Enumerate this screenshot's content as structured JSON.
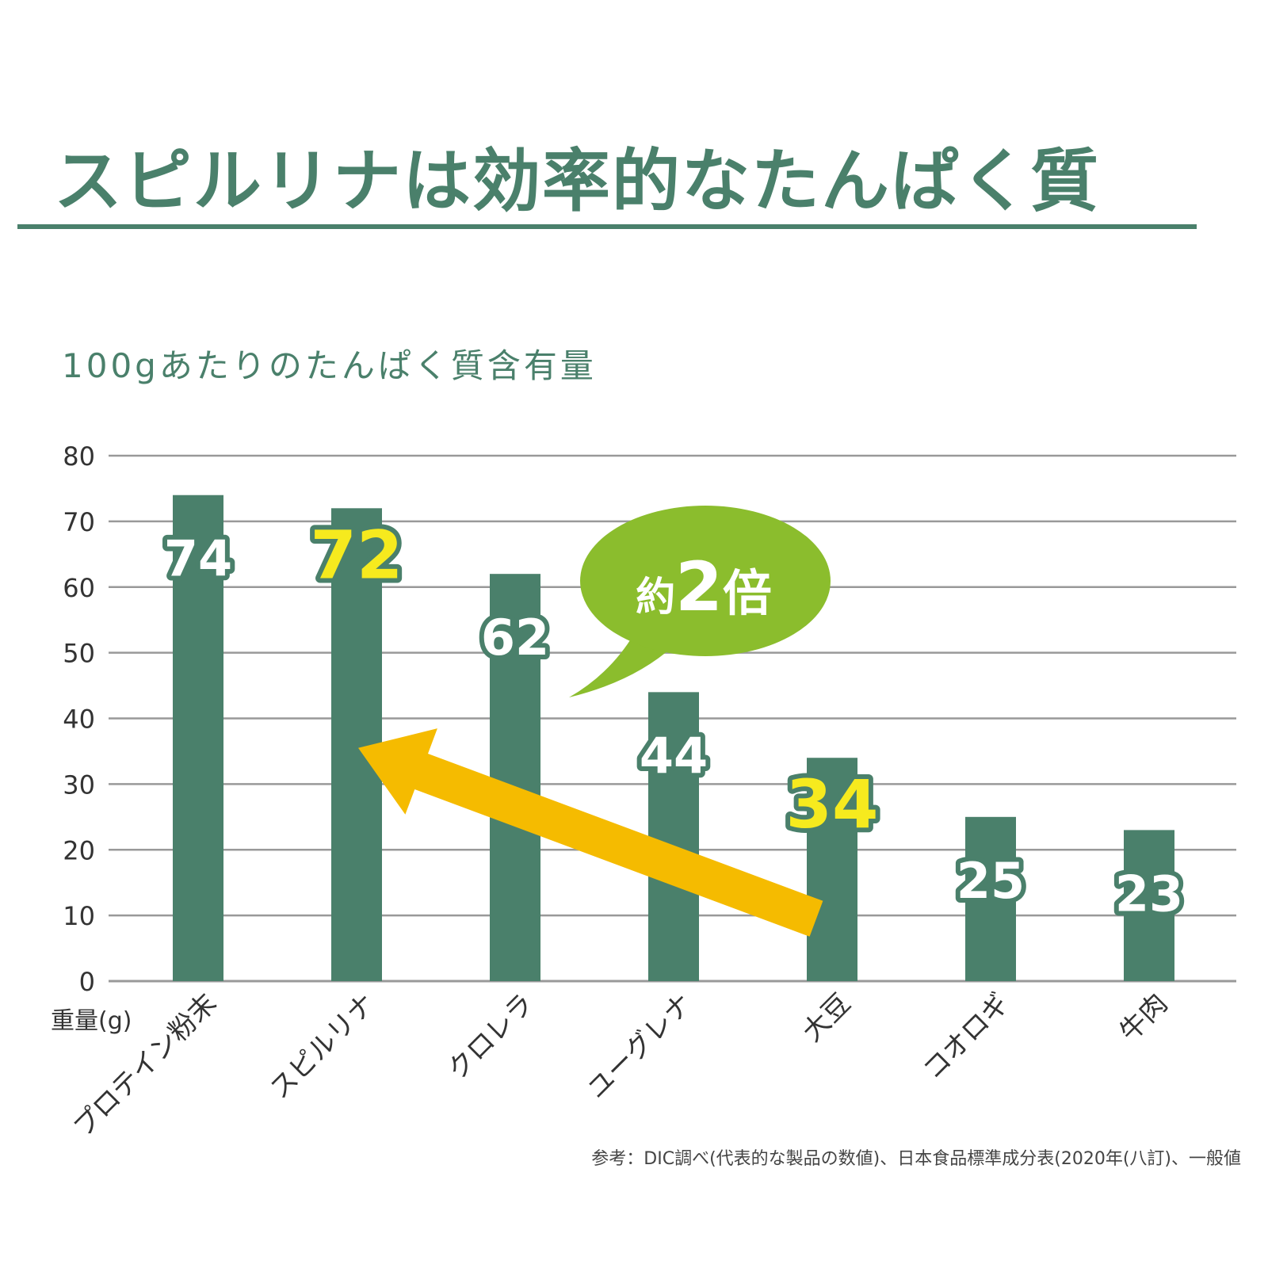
{
  "title": "スピルリナは効率的なたんぱく質",
  "subtitle": "100gあたりのたんぱく質含有量",
  "source": "参考：DIC調べ(代表的な製品の数値)、日本食品標準成分表(2020年(八訂)、一般値",
  "callout": {
    "prefix": "約",
    "number": "2",
    "suffix": "倍"
  },
  "colors": {
    "accent": "#4a806b",
    "bar": "#4a806b",
    "highlight_label": "#f6ea1e",
    "callout_bubble": "#8bbd2d",
    "arrow": "#f5bb00",
    "grid": "#999999"
  },
  "chart_data": {
    "type": "bar",
    "title": "100gあたりのたんぱく質含有量",
    "ylabel": "重量(g)",
    "xlabel": "",
    "ylim": [
      0,
      80
    ],
    "yticks": [
      0,
      10,
      20,
      30,
      40,
      50,
      60,
      70,
      80
    ],
    "grid": true,
    "categories": [
      "プロテイン粉末",
      "スピルリナ",
      "クロレラ",
      "ユーグレナ",
      "大豆",
      "コオロギ",
      "牛肉"
    ],
    "values": [
      74,
      72,
      62,
      44,
      34,
      25,
      23
    ],
    "data_labels": [
      "74",
      "72",
      "62",
      "44",
      "34",
      "25",
      "23"
    ],
    "highlighted": [
      "スピルリナ",
      "大豆"
    ],
    "annotations": [
      {
        "type": "arrow",
        "from": "大豆",
        "to": "スピルリナ"
      },
      {
        "type": "callout",
        "text": "約2倍"
      }
    ]
  }
}
